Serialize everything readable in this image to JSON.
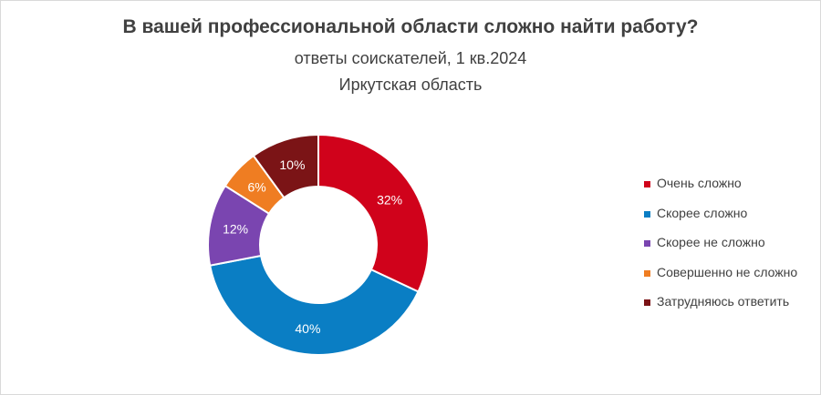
{
  "chart_data": {
    "type": "pie",
    "variant": "donut",
    "title": "В вашей профессиональной области сложно найти работу?",
    "subtitle": "ответы соискателей, 1 кв.2024",
    "subtitle2": "Иркутская область",
    "legend_position": "right",
    "slices": [
      {
        "label": "Очень сложно",
        "value": 32,
        "display": "32%",
        "color": "#d0021b"
      },
      {
        "label": "Скорее сложно",
        "value": 40,
        "display": "40%",
        "color": "#0a7ec4"
      },
      {
        "label": "Скорее не сложно",
        "value": 12,
        "display": "12%",
        "color": "#7a45b0"
      },
      {
        "label": "Совершенно не сложно",
        "value": 6,
        "display": "6%",
        "color": "#ef7d22"
      },
      {
        "label": "Затрудняюсь ответить",
        "value": 10,
        "display": "10%",
        "color": "#7b1416"
      }
    ]
  }
}
